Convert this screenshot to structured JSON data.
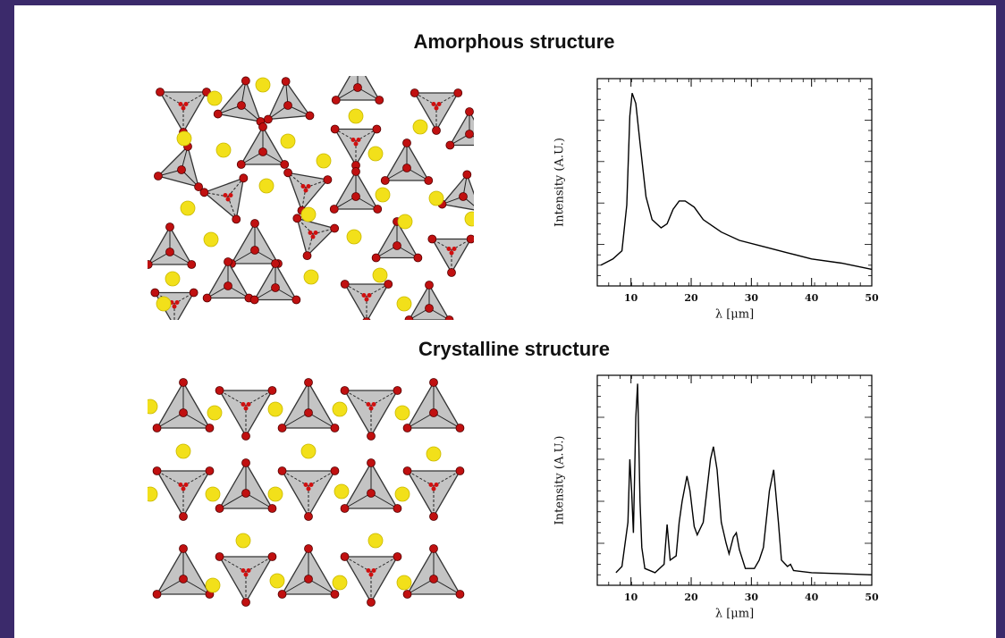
{
  "chart_data": [
    {
      "type": "line",
      "title": "Amorphous structure",
      "x_label": "λ [μm]",
      "y_label": "Intensity (A.U.)",
      "color": "#000000",
      "x": [
        5,
        7,
        8.5,
        9.3,
        9.8,
        10.2,
        10.8,
        11.5,
        12.5,
        13.5,
        15,
        16,
        17,
        18,
        19,
        20.5,
        22,
        25,
        28,
        32,
        36,
        40,
        45,
        50
      ],
      "values": [
        10,
        13,
        17,
        39,
        82,
        93,
        88,
        69,
        43,
        32,
        28,
        30,
        37,
        41,
        41,
        38,
        32,
        26,
        22,
        19,
        16,
        13,
        11,
        8
      ],
      "xlim": [
        4.4,
        50
      ],
      "ylim": [
        0,
        100
      ],
      "xticks": [
        10,
        20,
        30,
        40,
        50
      ]
    },
    {
      "type": "line",
      "title": "Crystalline structure",
      "x_label": "λ [μm]",
      "y_label": "Intensity (A.U.)",
      "color": "#000000",
      "x": [
        7.5,
        8.5,
        9.5,
        9.8,
        10.1,
        10.4,
        10.8,
        11.1,
        11.5,
        11.8,
        12.3,
        14,
        15.5,
        16,
        16.5,
        17.5,
        18,
        18.5,
        19.3,
        19.8,
        20.5,
        21,
        22,
        23.2,
        23.7,
        24.3,
        25,
        25.8,
        26.3,
        27,
        27.5,
        28,
        29,
        30.5,
        31.3,
        32,
        33,
        33.7,
        34.5,
        35,
        36,
        36.5,
        37,
        40,
        45,
        50
      ],
      "values": [
        6,
        9,
        30,
        60,
        45,
        25,
        80,
        96,
        40,
        18,
        8,
        6,
        10,
        29,
        12,
        14,
        30,
        40,
        52,
        45,
        28,
        24,
        30,
        60,
        66,
        55,
        30,
        20,
        15,
        23,
        25,
        17,
        8,
        8,
        12,
        18,
        45,
        55,
        30,
        12,
        9,
        10,
        7,
        6,
        5.5,
        5
      ],
      "xlim": [
        4.4,
        50
      ],
      "ylim": [
        0,
        100
      ],
      "xticks": [
        10,
        20,
        30,
        40,
        50
      ]
    }
  ]
}
